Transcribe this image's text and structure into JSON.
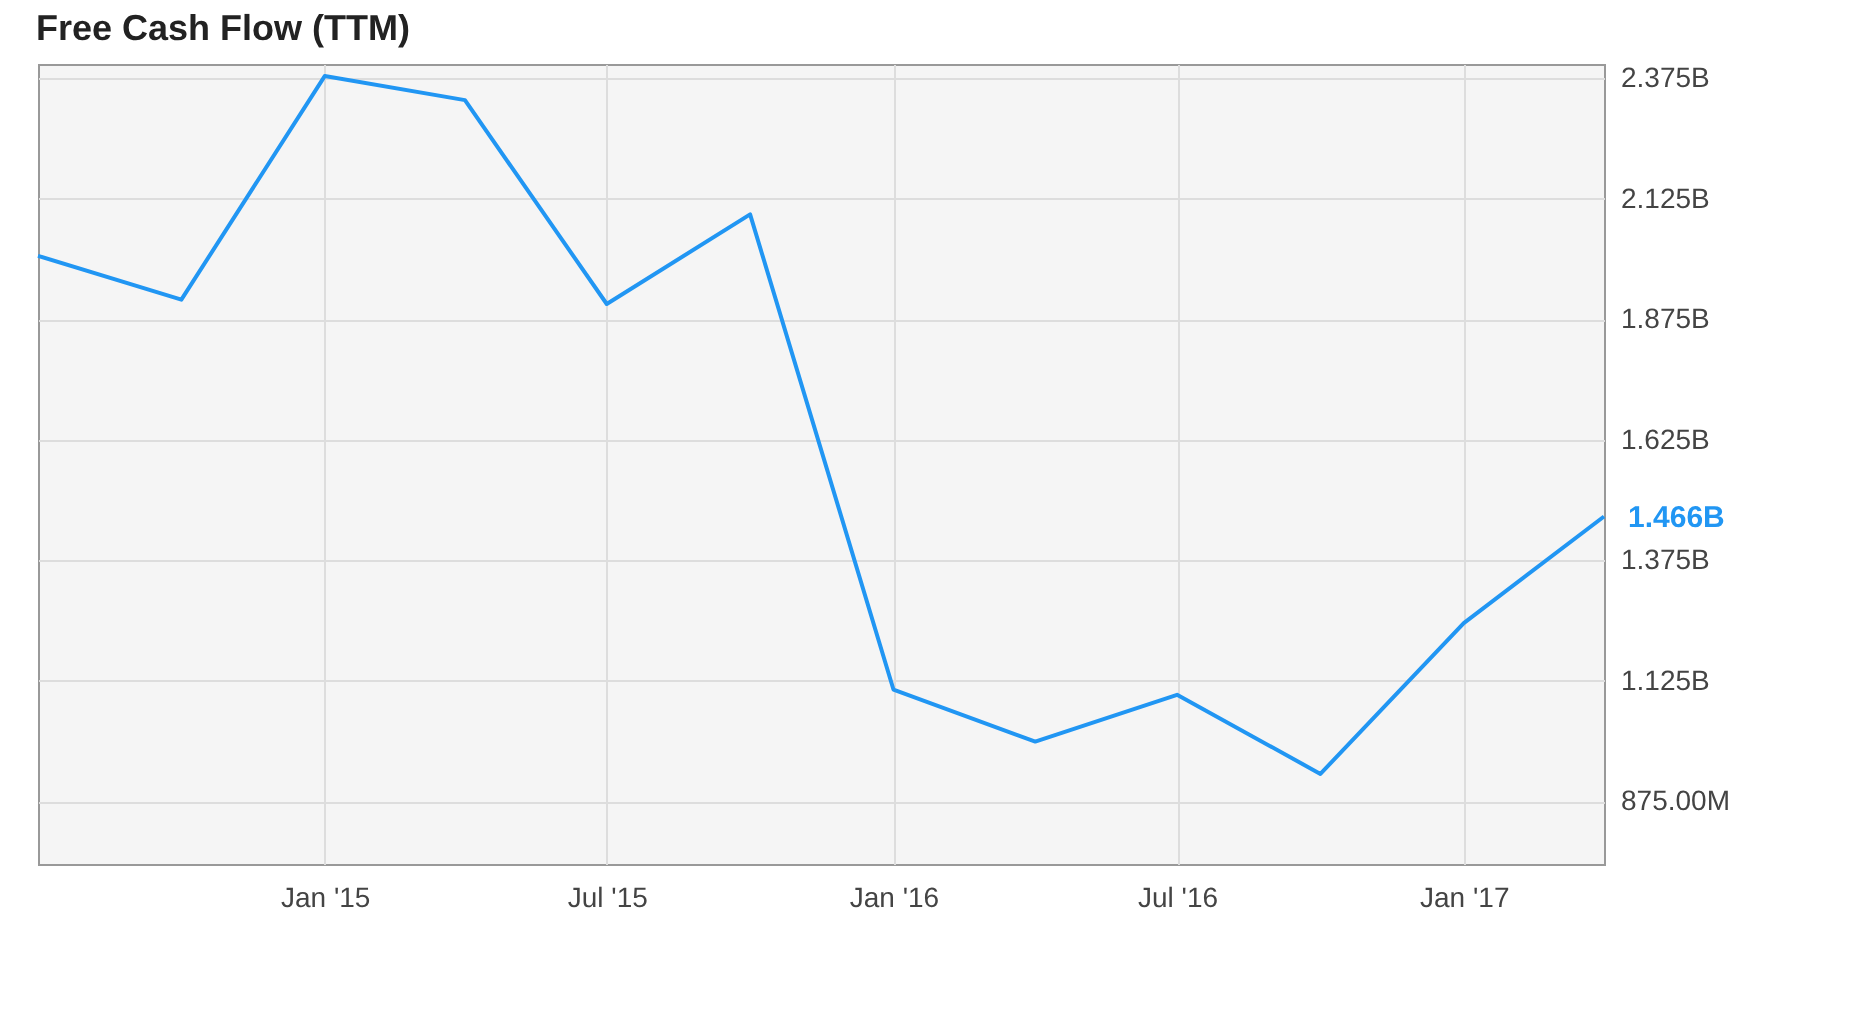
{
  "chart_data": {
    "type": "line",
    "title": "Free Cash Flow (TTM)",
    "x": [
      "2014-07",
      "2014-10",
      "2015-01",
      "2015-04",
      "2015-07",
      "2015-10",
      "2016-01",
      "2016-04",
      "2016-07",
      "2016-10",
      "2017-01",
      "2017-04"
    ],
    "series": [
      {
        "color": "#2196f3",
        "values": [
          2007000000,
          1916000000,
          2380000000,
          2330000000,
          1907000000,
          2093000000,
          1107000000,
          999000000,
          1096000000,
          932000000,
          1245000000,
          1466000000
        ],
        "value_labels": [
          null,
          null,
          null,
          null,
          null,
          null,
          null,
          null,
          null,
          null,
          null,
          "1.466B"
        ]
      }
    ],
    "xlim": [
      "2014-07",
      "2017-04"
    ],
    "xticks": [
      {
        "value": "2015-01",
        "label": "Jan '15"
      },
      {
        "value": "2015-07",
        "label": "Jul '15"
      },
      {
        "value": "2016-01",
        "label": "Jan '16"
      },
      {
        "value": "2016-07",
        "label": "Jul '16"
      },
      {
        "value": "2017-01",
        "label": "Jan '17"
      }
    ],
    "ylim": [
      745000000,
      2405000000
    ],
    "yticks": [
      {
        "value": 875000000,
        "label": "875.00M"
      },
      {
        "value": 1125000000,
        "label": "1.125B"
      },
      {
        "value": 1375000000,
        "label": "1.375B"
      },
      {
        "value": 1625000000,
        "label": "1.625B"
      },
      {
        "value": 1875000000,
        "label": "1.875B"
      },
      {
        "value": 2125000000,
        "label": "2.125B"
      },
      {
        "value": 2375000000,
        "label": "2.375B"
      }
    ],
    "grid": true,
    "legend": false,
    "marker": "none",
    "line_style": "solid"
  }
}
